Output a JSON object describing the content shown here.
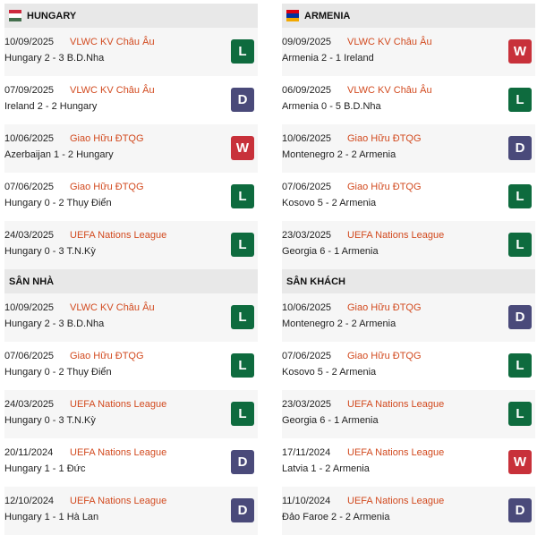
{
  "colors": {
    "L": "#0e6b3e",
    "D": "#4a4a7a",
    "W": "#c8313a",
    "competition": "#d24a1f"
  },
  "left": {
    "title": "HUNGARY",
    "flag": [
      "#cd2a3e",
      "#ffffff",
      "#436f4d"
    ],
    "matches": [
      {
        "date": "10/09/2025",
        "comp": "VLWC KV Châu Âu",
        "score": "Hungary 2 - 3 B.D.Nha",
        "result": "L"
      },
      {
        "date": "07/09/2025",
        "comp": "VLWC KV Châu Âu",
        "score": "Ireland 2 - 2 Hungary",
        "result": "D"
      },
      {
        "date": "10/06/2025",
        "comp": "Giao Hữu ĐTQG",
        "score": "Azerbaijan 1 - 2 Hungary",
        "result": "W"
      },
      {
        "date": "07/06/2025",
        "comp": "Giao Hữu ĐTQG",
        "score": "Hungary 0 - 2 Thụy Điển",
        "result": "L"
      },
      {
        "date": "24/03/2025",
        "comp": "UEFA Nations League",
        "score": "Hungary 0 - 3 T.N.Kỳ",
        "result": "L"
      }
    ]
  },
  "right": {
    "title": "ARMENIA",
    "flag": [
      "#d90012",
      "#0033a0",
      "#f2a800"
    ],
    "matches": [
      {
        "date": "09/09/2025",
        "comp": "VLWC KV Châu Âu",
        "score": "Armenia 2 - 1 Ireland",
        "result": "W"
      },
      {
        "date": "06/09/2025",
        "comp": "VLWC KV Châu Âu",
        "score": "Armenia 0 - 5 B.D.Nha",
        "result": "L"
      },
      {
        "date": "10/06/2025",
        "comp": "Giao Hữu ĐTQG",
        "score": "Montenegro 2 - 2 Armenia",
        "result": "D"
      },
      {
        "date": "07/06/2025",
        "comp": "Giao Hữu ĐTQG",
        "score": "Kosovo 5 - 2 Armenia",
        "result": "L"
      },
      {
        "date": "23/03/2025",
        "comp": "UEFA Nations League",
        "score": "Georgia 6 - 1 Armenia",
        "result": "L"
      }
    ]
  },
  "home": {
    "title": "SÂN NHÀ",
    "matches": [
      {
        "date": "10/09/2025",
        "comp": "VLWC KV Châu Âu",
        "score": "Hungary 2 - 3 B.D.Nha",
        "result": "L"
      },
      {
        "date": "07/06/2025",
        "comp": "Giao Hữu ĐTQG",
        "score": "Hungary 0 - 2 Thụy Điển",
        "result": "L"
      },
      {
        "date": "24/03/2025",
        "comp": "UEFA Nations League",
        "score": "Hungary 0 - 3 T.N.Kỳ",
        "result": "L"
      },
      {
        "date": "20/11/2024",
        "comp": "UEFA Nations League",
        "score": "Hungary 1 - 1 Đức",
        "result": "D"
      },
      {
        "date": "12/10/2024",
        "comp": "UEFA Nations League",
        "score": "Hungary 1 - 1 Hà Lan",
        "result": "D"
      }
    ]
  },
  "away": {
    "title": "SÂN KHÁCH",
    "matches": [
      {
        "date": "10/06/2025",
        "comp": "Giao Hữu ĐTQG",
        "score": "Montenegro 2 - 2 Armenia",
        "result": "D"
      },
      {
        "date": "07/06/2025",
        "comp": "Giao Hữu ĐTQG",
        "score": "Kosovo 5 - 2 Armenia",
        "result": "L"
      },
      {
        "date": "23/03/2025",
        "comp": "UEFA Nations League",
        "score": "Georgia 6 - 1 Armenia",
        "result": "L"
      },
      {
        "date": "17/11/2024",
        "comp": "UEFA Nations League",
        "score": "Latvia 1 - 2 Armenia",
        "result": "W"
      },
      {
        "date": "11/10/2024",
        "comp": "UEFA Nations League",
        "score": "Đảo Faroe 2 - 2 Armenia",
        "result": "D"
      }
    ]
  }
}
